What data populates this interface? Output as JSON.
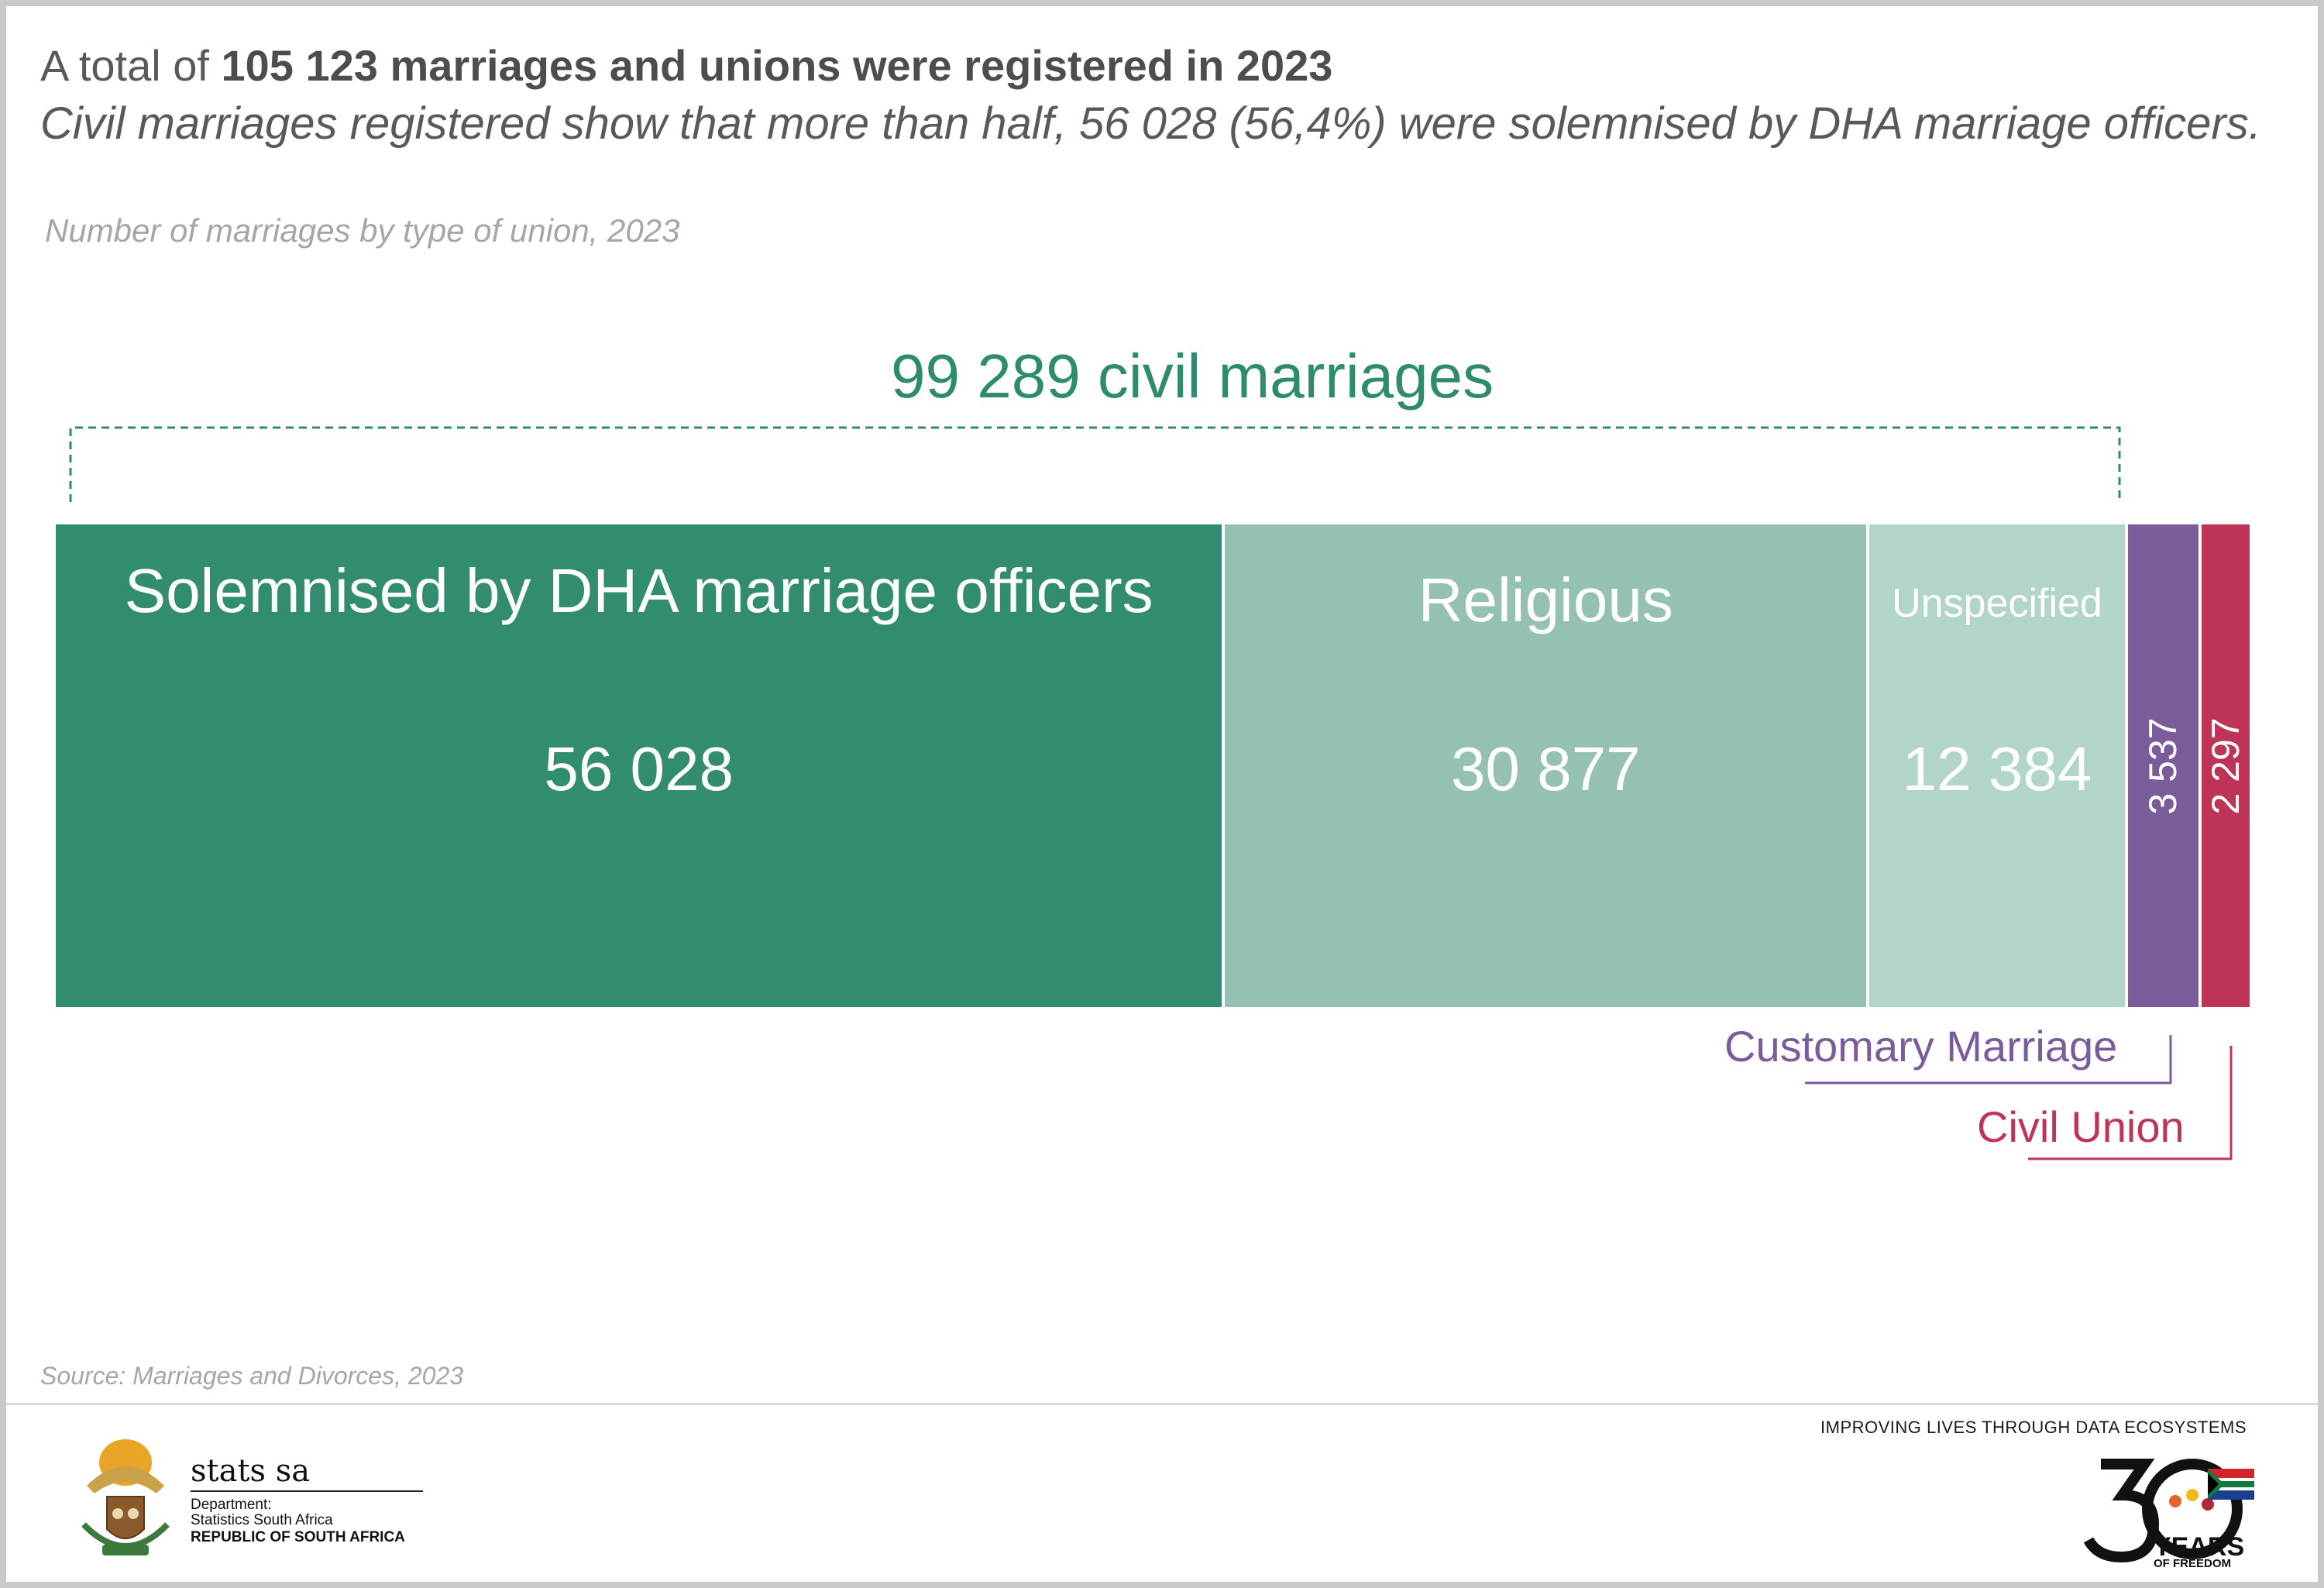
{
  "header": {
    "headline_prefix": "A total of ",
    "headline_bold": "105 123 marriages and unions were registered in 2023",
    "subline": "Civil marriages registered show that more than half, 56 028 (56,4%) were solemnised by DHA marriage officers.",
    "chart_caption": "Number of marriages by type of union, 2023"
  },
  "chart_data": {
    "type": "bar",
    "orientation": "horizontal-stacked",
    "total": 105123,
    "group_label": "99 289 civil marriages",
    "group_value": 99289,
    "categories": [
      "Solemnised by DHA marriage officers",
      "Religious",
      "Unspecified",
      "Customary Marriage",
      "Civil Union"
    ],
    "values": [
      56028,
      30877,
      12384,
      3537,
      2297
    ],
    "value_labels": [
      "56 028",
      "30 877",
      "12 384",
      "3 537",
      "2 297"
    ],
    "colors": [
      "#328c70",
      "#94c1b2",
      "#b2d5ca",
      "#7a5c9b",
      "#be3457"
    ]
  },
  "footer": {
    "source": "Source:  Marriages and Divorces, 2023",
    "tagline": "IMPROVING LIVES THROUGH DATA ECOSYSTEMS",
    "logo_name": "stats sa",
    "logo_dept": "Department:",
    "logo_org": "Statistics South Africa",
    "logo_country": "REPUBLIC OF SOUTH AFRICA",
    "anniv_years": "YEARS",
    "anniv_freedom": "OF FREEDOM"
  }
}
